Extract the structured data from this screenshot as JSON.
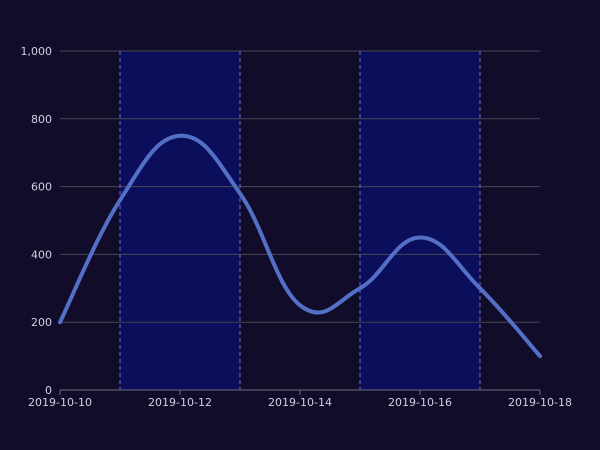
{
  "colors": {
    "background": "#100c2a",
    "line": "#5470c6",
    "band": "#0b1060",
    "grid": "#484753",
    "mark_line": "#6a6dd8",
    "text": "#d0d0e0"
  },
  "chart_data": {
    "type": "line",
    "title": "",
    "xlabel": "",
    "ylabel": "",
    "smooth": true,
    "x": [
      "2019-10-10",
      "2019-10-11",
      "2019-10-12",
      "2019-10-13",
      "2019-10-14",
      "2019-10-15",
      "2019-10-16",
      "2019-10-17",
      "2019-10-18"
    ],
    "x_tick_labels": [
      "2019-10-10",
      "2019-10-12",
      "2019-10-14",
      "2019-10-16",
      "2019-10-18"
    ],
    "series": [
      {
        "values": [
          200,
          560,
          750,
          580,
          250,
          300,
          450,
          300,
          100
        ]
      }
    ],
    "ylim": [
      0,
      1000
    ],
    "y_ticks": [
      0,
      200,
      400,
      600,
      800,
      1000
    ],
    "y_tick_labels": [
      "0",
      "200",
      "400",
      "600",
      "800",
      "1,000"
    ],
    "grid": true,
    "mark_lines_x": [
      "2019-10-11",
      "2019-10-13",
      "2019-10-15",
      "2019-10-17"
    ],
    "shaded_ranges": [
      [
        "2019-10-11",
        "2019-10-13"
      ],
      [
        "2019-10-15",
        "2019-10-17"
      ]
    ]
  }
}
